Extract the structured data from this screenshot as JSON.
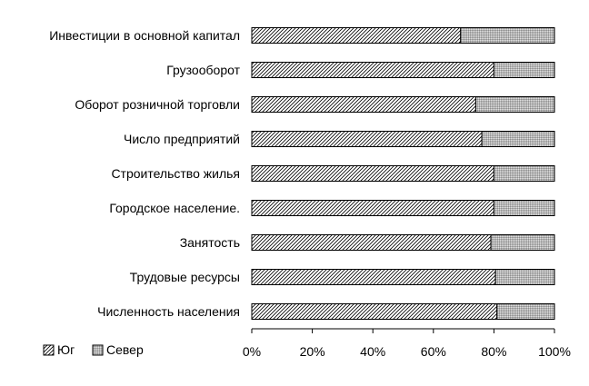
{
  "chart_data": {
    "type": "bar",
    "orientation": "horizontal",
    "stacking": "percent",
    "categories": [
      "Инвестиции в основной капитал",
      "Грузооборот",
      "Оборот розничной торговли",
      "Число предприятий",
      "Строительство жилья",
      "Городское население.",
      "Занятость",
      "Трудовые ресурсы",
      "Численность населения"
    ],
    "series": [
      {
        "name": "Юг",
        "values": [
          69,
          80,
          74,
          76,
          80,
          80,
          79,
          80.5,
          81
        ],
        "color": "#ffffff",
        "pattern": "diagonal-hatch"
      },
      {
        "name": "Север",
        "values": [
          31,
          20,
          26,
          24,
          20,
          20,
          21,
          19.5,
          19
        ],
        "color": "#c8c8c8",
        "pattern": "dense-grey"
      }
    ],
    "xlim": [
      0,
      100
    ],
    "xticks": [
      "0%",
      "20%",
      "40%",
      "60%",
      "80%",
      "100%"
    ],
    "grid": false,
    "legend_position": "bottom-left",
    "title": "",
    "xlabel": "",
    "ylabel": ""
  }
}
